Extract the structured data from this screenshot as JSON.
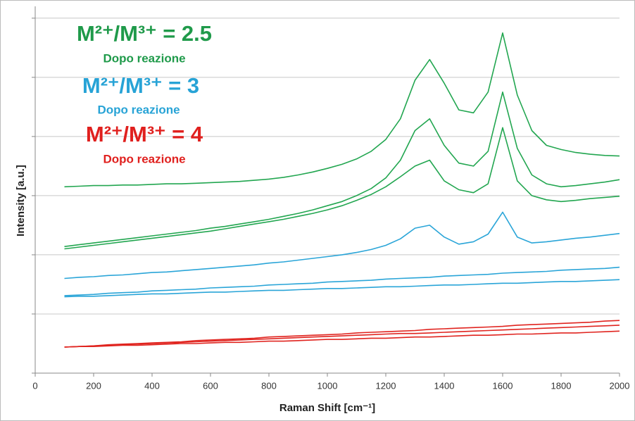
{
  "chart_data": {
    "type": "line",
    "xlabel": "Raman Shift [cm⁻¹]",
    "ylabel": "Intensity [a.u.]",
    "xlim": [
      0,
      2000
    ],
    "xticks": [
      0,
      200,
      400,
      600,
      800,
      1000,
      1200,
      1400,
      1600,
      1800,
      2000
    ],
    "ylim": [
      0,
      6.2
    ],
    "yticks": [
      0,
      1,
      2,
      3,
      4,
      5,
      6
    ],
    "grid": true,
    "annotations": [
      {
        "text": "M²⁺/M³⁺ = 2.5",
        "color": "#1f9a4a"
      },
      {
        "text": "Dopo reazione",
        "color": "#1f9a4a"
      },
      {
        "text": "M²⁺/M³⁺ = 3",
        "color": "#27a3d6"
      },
      {
        "text": "Dopo reazione",
        "color": "#27a3d6"
      },
      {
        "text": "M²⁺/M³⁺ = 4",
        "color": "#e0201e"
      },
      {
        "text": "Dopo reazione",
        "color": "#e0201e"
      }
    ],
    "x": [
      100,
      150,
      200,
      250,
      300,
      350,
      400,
      450,
      500,
      550,
      600,
      650,
      700,
      750,
      800,
      850,
      900,
      950,
      1000,
      1050,
      1100,
      1150,
      1200,
      1250,
      1300,
      1350,
      1400,
      1450,
      1500,
      1550,
      1600,
      1650,
      1700,
      1750,
      1800,
      1850,
      1900,
      1950,
      2000
    ],
    "series": [
      {
        "color": "#22a650",
        "values": [
          3.15,
          3.16,
          3.17,
          3.17,
          3.18,
          3.18,
          3.19,
          3.2,
          3.2,
          3.21,
          3.22,
          3.23,
          3.24,
          3.26,
          3.28,
          3.31,
          3.35,
          3.4,
          3.46,
          3.53,
          3.62,
          3.75,
          3.95,
          4.3,
          4.95,
          5.3,
          4.9,
          4.45,
          4.4,
          4.75,
          5.75,
          4.7,
          4.1,
          3.85,
          3.78,
          3.73,
          3.7,
          3.68,
          3.67
        ]
      },
      {
        "color": "#22a650",
        "values": [
          2.14,
          2.17,
          2.2,
          2.23,
          2.26,
          2.29,
          2.32,
          2.35,
          2.38,
          2.41,
          2.45,
          2.48,
          2.52,
          2.56,
          2.6,
          2.65,
          2.7,
          2.76,
          2.83,
          2.9,
          3.0,
          3.12,
          3.3,
          3.6,
          4.1,
          4.3,
          3.85,
          3.55,
          3.5,
          3.75,
          4.75,
          3.8,
          3.35,
          3.2,
          3.15,
          3.17,
          3.2,
          3.23,
          3.27
        ]
      },
      {
        "color": "#22a650",
        "values": [
          2.1,
          2.13,
          2.16,
          2.19,
          2.22,
          2.25,
          2.28,
          2.31,
          2.34,
          2.37,
          2.4,
          2.44,
          2.48,
          2.52,
          2.56,
          2.6,
          2.65,
          2.7,
          2.76,
          2.83,
          2.92,
          3.02,
          3.15,
          3.32,
          3.5,
          3.6,
          3.25,
          3.1,
          3.05,
          3.2,
          4.15,
          3.25,
          3.0,
          2.93,
          2.9,
          2.92,
          2.95,
          2.97,
          2.99
        ]
      },
      {
        "color": "#2aa5d8",
        "values": [
          1.6,
          1.62,
          1.63,
          1.65,
          1.66,
          1.68,
          1.7,
          1.71,
          1.73,
          1.75,
          1.77,
          1.79,
          1.81,
          1.83,
          1.86,
          1.88,
          1.91,
          1.94,
          1.97,
          2.0,
          2.04,
          2.09,
          2.16,
          2.27,
          2.45,
          2.5,
          2.3,
          2.18,
          2.22,
          2.35,
          2.72,
          2.3,
          2.2,
          2.22,
          2.25,
          2.28,
          2.3,
          2.33,
          2.36
        ]
      },
      {
        "color": "#2aa5d8",
        "values": [
          1.31,
          1.32,
          1.33,
          1.35,
          1.36,
          1.37,
          1.39,
          1.4,
          1.41,
          1.42,
          1.44,
          1.45,
          1.46,
          1.47,
          1.49,
          1.5,
          1.51,
          1.52,
          1.54,
          1.55,
          1.56,
          1.57,
          1.59,
          1.6,
          1.61,
          1.62,
          1.64,
          1.65,
          1.66,
          1.67,
          1.69,
          1.7,
          1.71,
          1.72,
          1.74,
          1.75,
          1.76,
          1.77,
          1.79
        ]
      },
      {
        "color": "#2aa5d8",
        "values": [
          1.29,
          1.3,
          1.3,
          1.31,
          1.32,
          1.33,
          1.34,
          1.34,
          1.35,
          1.36,
          1.37,
          1.37,
          1.38,
          1.39,
          1.4,
          1.4,
          1.41,
          1.42,
          1.43,
          1.43,
          1.44,
          1.45,
          1.46,
          1.46,
          1.47,
          1.48,
          1.49,
          1.49,
          1.5,
          1.51,
          1.52,
          1.52,
          1.53,
          1.54,
          1.55,
          1.55,
          1.56,
          1.57,
          1.58
        ]
      },
      {
        "color": "#e0241f",
        "values": [
          0.44,
          0.45,
          0.46,
          0.48,
          0.49,
          0.5,
          0.51,
          0.52,
          0.53,
          0.55,
          0.56,
          0.57,
          0.58,
          0.59,
          0.61,
          0.62,
          0.63,
          0.64,
          0.65,
          0.66,
          0.68,
          0.69,
          0.7,
          0.71,
          0.72,
          0.74,
          0.75,
          0.76,
          0.77,
          0.78,
          0.79,
          0.81,
          0.82,
          0.83,
          0.84,
          0.85,
          0.86,
          0.88,
          0.89
        ]
      },
      {
        "color": "#e0241f",
        "values": [
          0.44,
          0.45,
          0.46,
          0.47,
          0.48,
          0.49,
          0.5,
          0.51,
          0.52,
          0.53,
          0.54,
          0.55,
          0.56,
          0.57,
          0.58,
          0.59,
          0.6,
          0.61,
          0.62,
          0.63,
          0.64,
          0.65,
          0.66,
          0.67,
          0.67,
          0.68,
          0.69,
          0.7,
          0.71,
          0.72,
          0.73,
          0.74,
          0.75,
          0.76,
          0.77,
          0.78,
          0.79,
          0.8,
          0.81
        ]
      },
      {
        "color": "#e0241f",
        "values": [
          0.44,
          0.45,
          0.45,
          0.46,
          0.47,
          0.47,
          0.48,
          0.49,
          0.5,
          0.5,
          0.51,
          0.52,
          0.52,
          0.53,
          0.54,
          0.54,
          0.55,
          0.56,
          0.57,
          0.57,
          0.58,
          0.59,
          0.59,
          0.6,
          0.61,
          0.61,
          0.62,
          0.63,
          0.64,
          0.64,
          0.65,
          0.66,
          0.66,
          0.67,
          0.68,
          0.68,
          0.69,
          0.7,
          0.71
        ]
      }
    ]
  }
}
